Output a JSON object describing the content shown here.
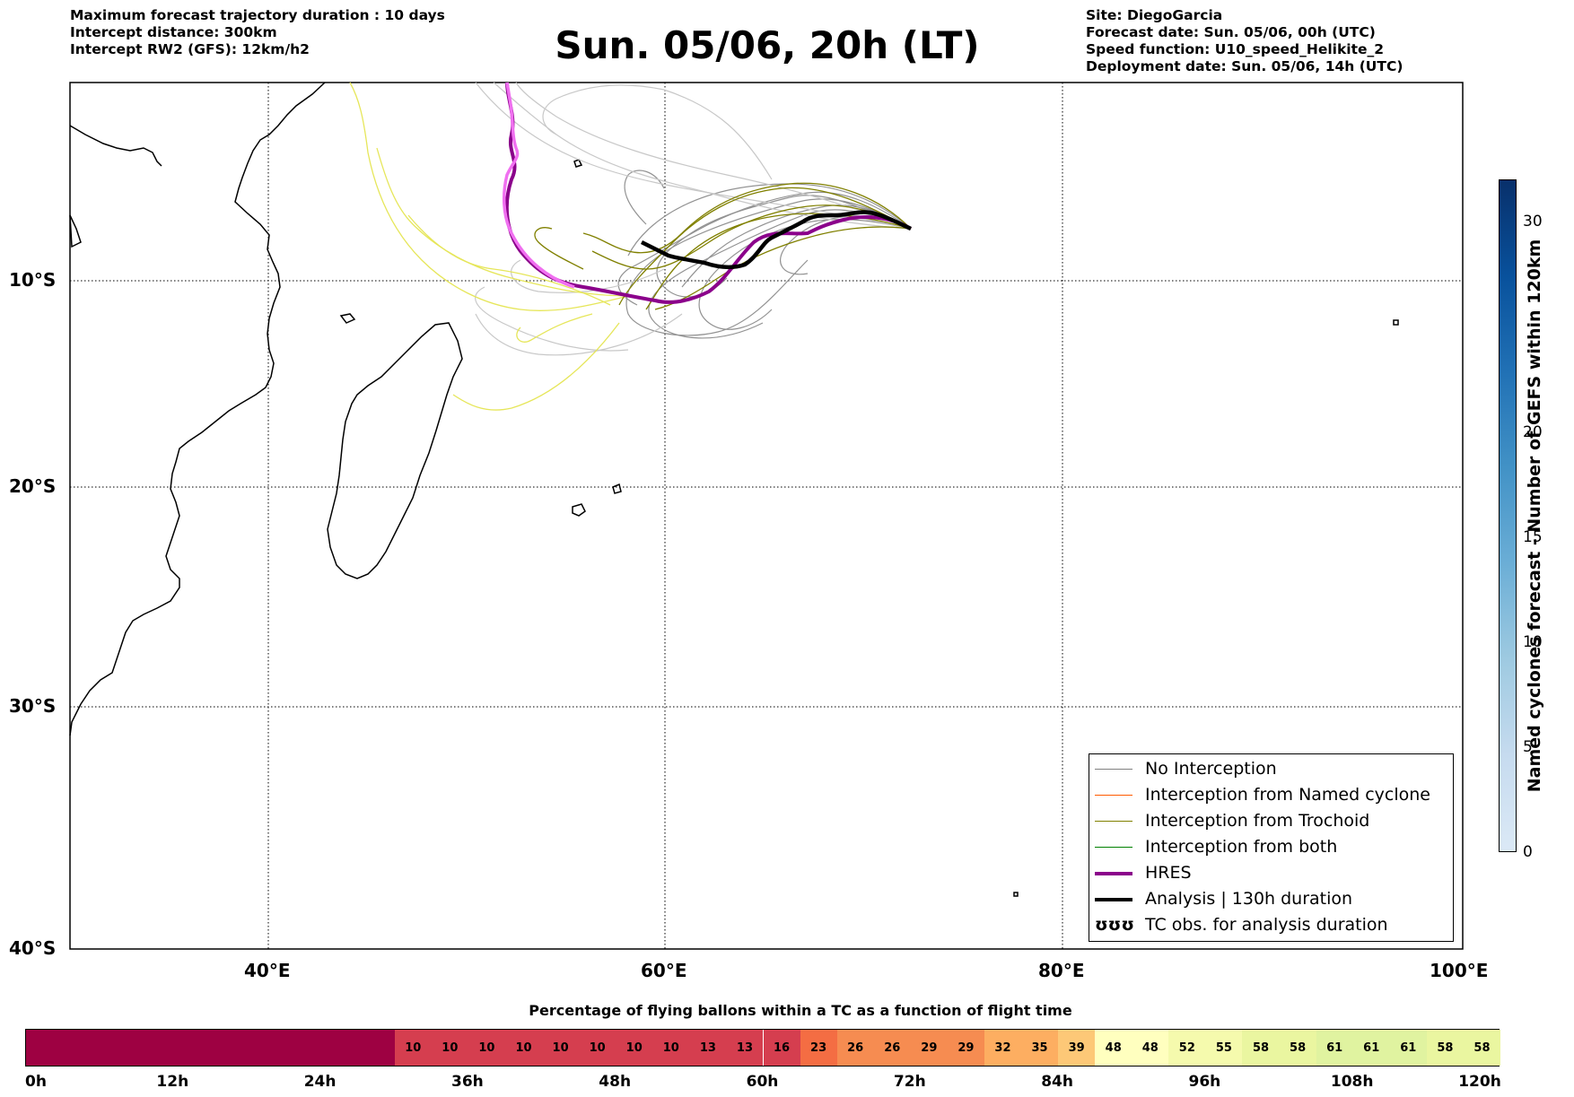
{
  "header_left": [
    "Maximum forecast trajectory duration : 10 days",
    "Intercept distance: 300km",
    "Intercept RW2 (GFS):  12km/h2"
  ],
  "title": "Sun. 05/06, 20h (LT)",
  "header_right": [
    "Site: DiegoGarcia",
    "Forecast date: Sun. 05/06, 00h (UTC)",
    "Speed function: U10_speed_Helikite_2",
    "Deployment date: Sun. 05/06, 14h (UTC)"
  ],
  "map": {
    "lon_labels": [
      "40°E",
      "60°E",
      "80°E",
      "100°E"
    ],
    "lat_labels": [
      "10°S",
      "20°S",
      "30°S",
      "40°S"
    ],
    "lon_range": [
      30,
      100
    ],
    "lat_range": [
      -40,
      0
    ]
  },
  "legend": {
    "items": [
      {
        "label": "No Interception",
        "color": "#808080"
      },
      {
        "label": "Interception from Named cyclone",
        "color": "#ff5a00"
      },
      {
        "label": "Interception from Trochoid",
        "color": "#808000"
      },
      {
        "label": "Interception from both",
        "color": "#008000"
      },
      {
        "label": "HRES",
        "color": "#8b008b"
      },
      {
        "label": "Analysis | 130h duration",
        "color": "#000000"
      },
      {
        "label": "TC obs. for analysis duration",
        "color": "#000000"
      }
    ],
    "tc_symbol": "ʊʊʊ"
  },
  "colorbar": {
    "label": "Named cyclones forecast - Number of GEFS within 120km",
    "ticks": [
      "0",
      "5",
      "10",
      "15",
      "20",
      "30"
    ],
    "colors": [
      "#dbe9f6",
      "#c6dbef",
      "#9ecae1",
      "#6baed6",
      "#4292c6",
      "#2171b5",
      "#08519c",
      "#08306b"
    ]
  },
  "bottom": {
    "title": "Percentage of flying ballons within a TC as a function of flight time",
    "values": [
      "10",
      "10",
      "10",
      "10",
      "10",
      "10",
      "10",
      "10",
      "13",
      "13",
      "16",
      "23",
      "26",
      "26",
      "29",
      "29",
      "32",
      "35",
      "39",
      "48",
      "48",
      "52",
      "55",
      "58",
      "58",
      "61",
      "61",
      "61",
      "58",
      "58"
    ],
    "time_labels": [
      "0h",
      "12h",
      "24h",
      "36h",
      "48h",
      "60h",
      "72h",
      "84h",
      "96h",
      "108h",
      "120h"
    ]
  }
}
